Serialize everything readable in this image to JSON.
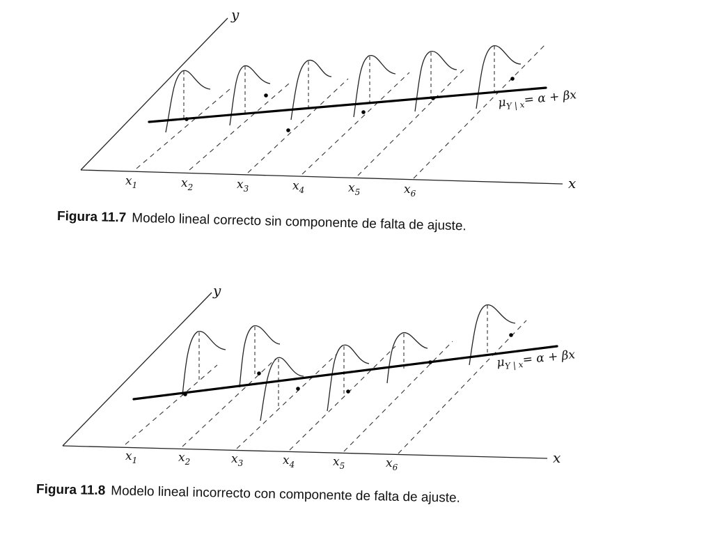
{
  "figures": [
    {
      "id": "fig-11-7",
      "number": "Figura 11.7",
      "caption": "Modelo lineal correcto sin componente de falta de ajuste.",
      "y_axis_label": "y",
      "x_axis_label": "x",
      "tick_labels": [
        {
          "base": "x",
          "sub": "1"
        },
        {
          "base": "x",
          "sub": "2"
        },
        {
          "base": "x",
          "sub": "3"
        },
        {
          "base": "x",
          "sub": "4"
        },
        {
          "base": "x",
          "sub": "5"
        },
        {
          "base": "x",
          "sub": "6"
        }
      ],
      "equation": {
        "mu": "μ",
        "sub": "Y | x",
        "rhs": "= α + βx"
      }
    },
    {
      "id": "fig-11-8",
      "number": "Figura 11.8",
      "caption": "Modelo lineal incorrecto con componente de falta de ajuste.",
      "y_axis_label": "y",
      "x_axis_label": "x",
      "tick_labels": [
        {
          "base": "x",
          "sub": "1"
        },
        {
          "base": "x",
          "sub": "2"
        },
        {
          "base": "x",
          "sub": "3"
        },
        {
          "base": "x",
          "sub": "4"
        },
        {
          "base": "x",
          "sub": "5"
        },
        {
          "base": "x",
          "sub": "6"
        }
      ],
      "equation": {
        "mu": "μ",
        "sub": "Y | x",
        "rhs": "= α + βx"
      }
    }
  ]
}
